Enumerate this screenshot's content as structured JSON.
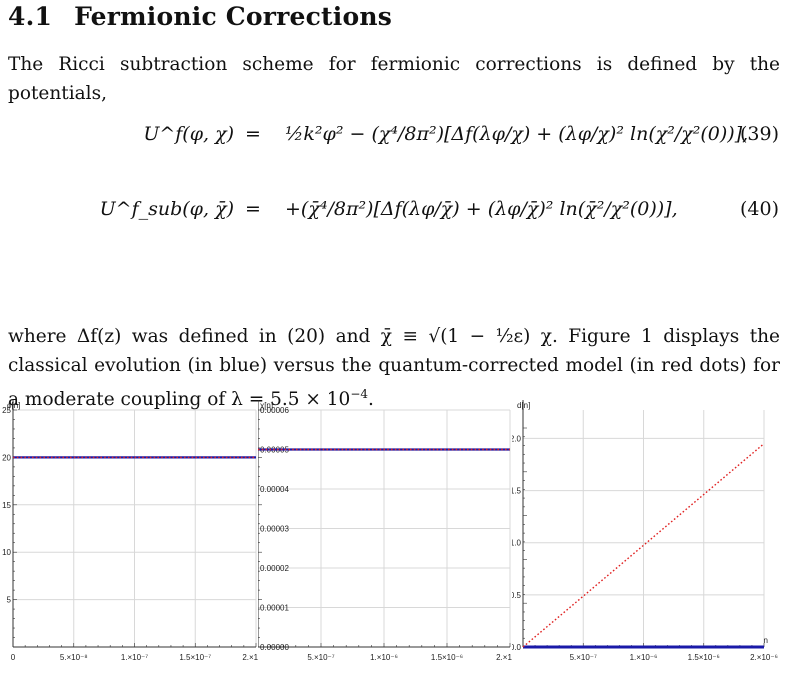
{
  "section": {
    "number": "4.1",
    "title": "Fermionic Corrections"
  },
  "paragraph1": "The Ricci subtraction scheme for fermionic corrections is defined by the potentials,",
  "equations": [
    {
      "lhs": "U^f(φ, χ)",
      "rhs": "½k²φ² − (χ⁴/8π²)[Δf(λφ/χ) + (λφ/χ)² ln(χ²/χ²(0))],",
      "number": "(39)"
    },
    {
      "lhs": "U^f_sub(φ, χ̄)",
      "rhs": "+(χ̄⁴/8π²)[Δf(λφ/χ̄) + (λφ/χ̄)² ln(χ̄²/χ²(0))],",
      "number": "(40)"
    }
  ],
  "paragraph2": {
    "part1": "where Δf(z) was defined in (20) and χ̄ ≡ √(1 − ½ε) χ. Figure 1 displays the classical evolution (in blue) versus the quantum-corrected model (in red dots) for a moderate coupling of λ = 5.5 × 10",
    "exp": "−4",
    "part2": "."
  },
  "colors": {
    "classical": "#1a1aa8",
    "quantum": "#e02020",
    "grid": "#d8d8d8"
  },
  "chart_data": [
    {
      "type": "line",
      "ylabel": "ϕ[n]",
      "xlabel": "",
      "xlim": [
        0,
        2e-07
      ],
      "ylim": [
        0,
        25
      ],
      "x_ticks": [
        "0",
        "5.×10⁻⁸",
        "1.×10⁻⁷",
        "1.5×10⁻⁷",
        "2.×10⁻⁷"
      ],
      "y_ticks": [
        "5",
        "10",
        "15",
        "20",
        "25"
      ],
      "grid": true,
      "series": [
        {
          "x": [
            0,
            2e-07
          ],
          "values": [
            20,
            20
          ]
        },
        {
          "x": [
            0,
            2e-07
          ],
          "values": [
            20,
            20
          ]
        }
      ]
    },
    {
      "type": "line",
      "ylabel": "χ[n]",
      "xlabel": "",
      "xlim": [
        0,
        2e-06
      ],
      "ylim": [
        0,
        6e-05
      ],
      "x_ticks": [
        "5.×10⁻⁷",
        "1.×10⁻⁶",
        "1.5×10⁻⁶",
        "2.×10⁻⁶"
      ],
      "y_ticks": [
        "0.00000",
        "0.00001",
        "0.00002",
        "0.00003",
        "0.00004",
        "0.00005",
        "0.00006"
      ],
      "grid": true,
      "series": [
        {
          "x": [
            0,
            2e-06
          ],
          "values": [
            5e-05,
            5e-05
          ]
        },
        {
          "x": [
            0,
            2e-06
          ],
          "values": [
            5e-05,
            5e-05
          ]
        }
      ]
    },
    {
      "type": "line",
      "ylabel": "d[n]",
      "xlabel": "n",
      "xlim": [
        0,
        2e-06
      ],
      "ylim": [
        0,
        2.1
      ],
      "x_ticks": [
        "5.×10⁻⁷",
        "1.×10⁻⁶",
        "1.5×10⁻⁶",
        "2.×10⁻⁶"
      ],
      "y_ticks": [
        "0.0",
        "0.5",
        "1.0",
        "1.5",
        "2.0"
      ],
      "grid": true,
      "series": [
        {
          "x": [
            0,
            2e-06
          ],
          "values": [
            0,
            0
          ]
        },
        {
          "x": [
            0,
            2e-06
          ],
          "values": [
            0,
            1.95
          ]
        }
      ]
    }
  ]
}
